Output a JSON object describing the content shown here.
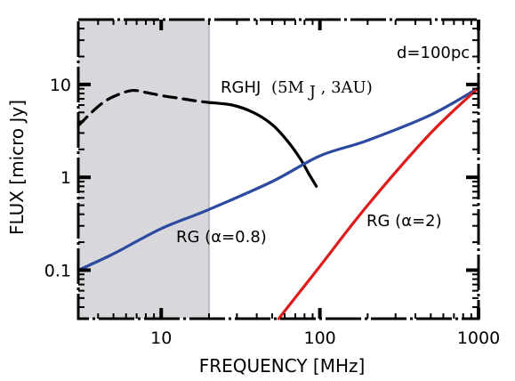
{
  "chart_data": {
    "type": "line",
    "title": "",
    "xlabel": "FREQUENCY [MHz]",
    "ylabel": "FLUX [micro Jy]",
    "xscale": "log",
    "yscale": "log",
    "xlim": [
      3,
      1000
    ],
    "ylim": [
      0.03,
      50
    ],
    "x_ticks": [
      {
        "value": 10,
        "label": "10"
      },
      {
        "value": 100,
        "label": "100"
      },
      {
        "value": 1000,
        "label": "1000"
      }
    ],
    "y_ticks": [
      {
        "value": 0.1,
        "label": "0.1"
      },
      {
        "value": 1,
        "label": "1"
      },
      {
        "value": 10,
        "label": "10"
      }
    ],
    "shaded_region": {
      "x_from": 3,
      "x_to": 20,
      "color": "#d8d8dc"
    },
    "annotation_distance": "d=100pc",
    "series": [
      {
        "label_main": "RGHJ",
        "label_params": "(5M",
        "label_sub": "J",
        "label_tail": ", 3AU)",
        "color": "#000000",
        "segments": [
          {
            "style": "dashed",
            "x": [
              3,
              4,
              5,
              6.5,
              8,
              10,
              13,
              16,
              20
            ],
            "y": [
              3.6,
              5.8,
              7.4,
              8.6,
              8.2,
              7.6,
              7.1,
              6.7,
              6.4
            ]
          },
          {
            "style": "solid",
            "x": [
              20,
              28,
              38,
              50,
              62,
              75,
              85,
              95
            ],
            "y": [
              6.4,
              6.0,
              5.0,
              3.7,
              2.5,
              1.6,
              1.1,
              0.8
            ]
          }
        ]
      },
      {
        "label": "RG (α=0.8)",
        "color": "#2b4aa0",
        "x": [
          3,
          5,
          10,
          20,
          50,
          100,
          200,
          500,
          1000
        ],
        "y": [
          0.1,
          0.15,
          0.28,
          0.45,
          0.9,
          1.7,
          2.5,
          4.7,
          9.2
        ]
      },
      {
        "label": "RG (α=2)",
        "color": "#e01b1b",
        "x": [
          55,
          100,
          200,
          500,
          1000
        ],
        "y": [
          0.03,
          0.11,
          0.5,
          3.0,
          9.2
        ]
      }
    ]
  }
}
